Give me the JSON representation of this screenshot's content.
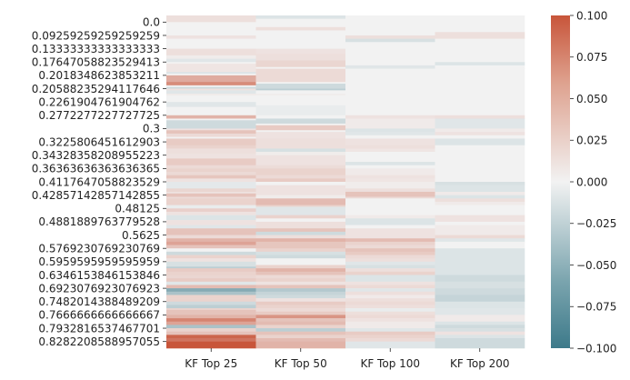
{
  "chart_data": {
    "type": "heatmap",
    "columns": [
      "KF Top 25",
      "KF Top 50",
      "KF Top 100",
      "KF Top 200"
    ],
    "y_tick_labels": [
      "0.0",
      "0.09259259259259259",
      "0.13333333333333333",
      "0.17647058823529413",
      "0.2018348623853211",
      "0.20588235294117646",
      "0.2261904761904762",
      "0.2772277227727725",
      "0.3",
      "0.3225806451612903",
      "0.34328358208955223",
      "0.36363636363636365",
      "0.4117647058823529",
      "0.42857142857142855",
      "0.48125",
      "0.4881889763779528",
      "0.5625",
      "0.5769230769230769",
      "0.5959595959595959",
      "0.6346153846153846",
      "0.6923076923076923",
      "0.7482014388489209",
      "0.7666666666666667",
      "0.7932816537467701",
      "0.8282208588957055"
    ],
    "colorbar": {
      "vmin": -0.1,
      "vmax": 0.1,
      "ticks": [
        "0.100",
        "0.075",
        "0.050",
        "0.025",
        "0.000",
        "−0.025",
        "−0.050",
        "−0.075",
        "−0.100"
      ],
      "low_color": "#3d7a8a",
      "mid_color": "#f2f2f2",
      "high_color": "#c8553a"
    },
    "cell_segments": [
      [
        [
          0.02,
          0.012
        ],
        [
          0.06,
          0
        ],
        [
          0.07,
          0.01
        ],
        [
          0.1,
          0
        ],
        [
          0.12,
          0.012
        ],
        [
          0.13,
          0.004
        ],
        [
          0.14,
          -0.01
        ],
        [
          0.145,
          0
        ],
        [
          0.17,
          0.008
        ],
        [
          0.175,
          -0.012
        ],
        [
          0.18,
          0
        ],
        [
          0.2,
          0.045
        ],
        [
          0.21,
          0.065
        ],
        [
          0.215,
          0
        ],
        [
          0.22,
          -0.02
        ],
        [
          0.225,
          0.01
        ],
        [
          0.235,
          -0.01
        ],
        [
          0.24,
          0.005
        ],
        [
          0.26,
          0
        ],
        [
          0.275,
          -0.01
        ],
        [
          0.3,
          0
        ],
        [
          0.31,
          0.04
        ],
        [
          0.315,
          0
        ],
        [
          0.34,
          -0.02
        ],
        [
          0.345,
          0.01
        ],
        [
          0.355,
          0.03
        ],
        [
          0.365,
          0.015
        ],
        [
          0.37,
          0
        ],
        [
          0.39,
          0.025
        ],
        [
          0.4,
          0.02
        ],
        [
          0.415,
          0.012
        ],
        [
          0.43,
          0.01
        ],
        [
          0.45,
          0.025
        ],
        [
          0.46,
          0.015
        ],
        [
          0.47,
          0.02
        ],
        [
          0.48,
          0.015
        ],
        [
          0.49,
          0.028
        ],
        [
          0.5,
          0.01
        ],
        [
          0.52,
          -0.008
        ],
        [
          0.53,
          0.018
        ],
        [
          0.535,
          0.01
        ],
        [
          0.545,
          0.03
        ],
        [
          0.55,
          0.015
        ],
        [
          0.57,
          0.02
        ],
        [
          0.58,
          -0.005
        ],
        [
          0.59,
          0.022
        ],
        [
          0.6,
          0.01
        ],
        [
          0.615,
          -0.012
        ],
        [
          0.63,
          0.01
        ],
        [
          0.64,
          -0.01
        ],
        [
          0.66,
          0.03
        ],
        [
          0.67,
          0.015
        ],
        [
          0.68,
          0.04
        ],
        [
          0.69,
          0.05
        ],
        [
          0.7,
          0.03
        ],
        [
          0.71,
          0
        ],
        [
          0.72,
          -0.02
        ],
        [
          0.73,
          0.02
        ],
        [
          0.74,
          0.01
        ],
        [
          0.755,
          -0.015
        ],
        [
          0.76,
          -0.03
        ],
        [
          0.77,
          0.025
        ],
        [
          0.78,
          0.02
        ],
        [
          0.79,
          0.018
        ],
        [
          0.8,
          0.025
        ],
        [
          0.81,
          -0.01
        ],
        [
          0.82,
          0.035
        ],
        [
          0.83,
          -0.06
        ],
        [
          0.84,
          -0.04
        ],
        [
          0.85,
          0.02
        ],
        [
          0.86,
          0.02
        ],
        [
          0.87,
          -0.02
        ],
        [
          0.88,
          -0.03
        ],
        [
          0.885,
          0.02
        ],
        [
          0.9,
          0.03
        ],
        [
          0.91,
          0.04
        ],
        [
          0.92,
          0.07
        ],
        [
          0.93,
          0.05
        ],
        [
          0.94,
          -0.04
        ],
        [
          0.95,
          0.02
        ],
        [
          0.96,
          0.03
        ],
        [
          0.97,
          0.09
        ],
        [
          0.98,
          0.08
        ],
        [
          1.0,
          0.1
        ]
      ],
      [
        [
          0.01,
          -0.012
        ],
        [
          0.035,
          0
        ],
        [
          0.045,
          0.012
        ],
        [
          0.06,
          0
        ],
        [
          0.1,
          0
        ],
        [
          0.115,
          0.01
        ],
        [
          0.135,
          0.012
        ],
        [
          0.155,
          0.018
        ],
        [
          0.16,
          0
        ],
        [
          0.17,
          0.015
        ],
        [
          0.2,
          0.015
        ],
        [
          0.205,
          0
        ],
        [
          0.22,
          -0.02
        ],
        [
          0.225,
          -0.03
        ],
        [
          0.235,
          0
        ],
        [
          0.24,
          0.004
        ],
        [
          0.27,
          0
        ],
        [
          0.3,
          -0.005
        ],
        [
          0.31,
          0
        ],
        [
          0.325,
          -0.02
        ],
        [
          0.33,
          0
        ],
        [
          0.345,
          0.025
        ],
        [
          0.35,
          0
        ],
        [
          0.37,
          0.01
        ],
        [
          0.4,
          0.012
        ],
        [
          0.41,
          -0.015
        ],
        [
          0.42,
          0.004
        ],
        [
          0.45,
          0.01
        ],
        [
          0.46,
          0.014
        ],
        [
          0.48,
          0.02
        ],
        [
          0.49,
          0.015
        ],
        [
          0.5,
          0.025
        ],
        [
          0.51,
          0
        ],
        [
          0.52,
          0.01
        ],
        [
          0.54,
          0.01
        ],
        [
          0.55,
          0.004
        ],
        [
          0.57,
          0.035
        ],
        [
          0.575,
          0.02
        ],
        [
          0.6,
          -0.01
        ],
        [
          0.61,
          0.02
        ],
        [
          0.62,
          0
        ],
        [
          0.64,
          0.012
        ],
        [
          0.65,
          0.03
        ],
        [
          0.66,
          -0.02
        ],
        [
          0.67,
          0.012
        ],
        [
          0.68,
          0.04
        ],
        [
          0.7,
          0.028
        ],
        [
          0.71,
          0.02
        ],
        [
          0.72,
          -0.015
        ],
        [
          0.73,
          -0.02
        ],
        [
          0.74,
          0
        ],
        [
          0.75,
          0
        ],
        [
          0.76,
          0.02
        ],
        [
          0.77,
          0.04
        ],
        [
          0.78,
          0.03
        ],
        [
          0.79,
          0.015
        ],
        [
          0.8,
          0.02
        ],
        [
          0.81,
          0.01
        ],
        [
          0.82,
          0.03
        ],
        [
          0.83,
          -0.035
        ],
        [
          0.84,
          -0.025
        ],
        [
          0.85,
          -0.02
        ],
        [
          0.86,
          0.01
        ],
        [
          0.87,
          0.025
        ],
        [
          0.88,
          0.02
        ],
        [
          0.89,
          0.015
        ],
        [
          0.9,
          0.025
        ],
        [
          0.91,
          0.06
        ],
        [
          0.92,
          0.03
        ],
        [
          0.93,
          0.035
        ],
        [
          0.94,
          0.02
        ],
        [
          0.95,
          -0.03
        ],
        [
          0.96,
          0.03
        ],
        [
          0.97,
          0.02
        ],
        [
          0.98,
          0.035
        ],
        [
          1.0,
          0.04
        ]
      ],
      [
        [
          0.06,
          0
        ],
        [
          0.07,
          0.012
        ],
        [
          0.08,
          -0.015
        ],
        [
          0.1,
          0
        ],
        [
          0.15,
          0
        ],
        [
          0.16,
          -0.01
        ],
        [
          0.17,
          0
        ],
        [
          0.3,
          0
        ],
        [
          0.31,
          0.01
        ],
        [
          0.34,
          0.005
        ],
        [
          0.35,
          -0.012
        ],
        [
          0.36,
          -0.01
        ],
        [
          0.37,
          0
        ],
        [
          0.39,
          0.01
        ],
        [
          0.4,
          0.012
        ],
        [
          0.41,
          0.008
        ],
        [
          0.44,
          0
        ],
        [
          0.45,
          -0.012
        ],
        [
          0.46,
          0
        ],
        [
          0.48,
          0.005
        ],
        [
          0.49,
          0.01
        ],
        [
          0.5,
          0.008
        ],
        [
          0.52,
          0.004
        ],
        [
          0.53,
          0.012
        ],
        [
          0.545,
          0.03
        ],
        [
          0.55,
          0.015
        ],
        [
          0.56,
          0
        ],
        [
          0.6,
          0
        ],
        [
          0.61,
          0.005
        ],
        [
          0.63,
          -0.012
        ],
        [
          0.64,
          0
        ],
        [
          0.67,
          0.01
        ],
        [
          0.68,
          0.035
        ],
        [
          0.69,
          0.02
        ],
        [
          0.7,
          0.015
        ],
        [
          0.71,
          0.03
        ],
        [
          0.72,
          0.025
        ],
        [
          0.73,
          0.015
        ],
        [
          0.74,
          0.012
        ],
        [
          0.75,
          -0.01
        ],
        [
          0.76,
          -0.015
        ],
        [
          0.77,
          0.012
        ],
        [
          0.78,
          0.02
        ],
        [
          0.8,
          -0.012
        ],
        [
          0.81,
          0.01
        ],
        [
          0.82,
          0.015
        ],
        [
          0.83,
          -0.01
        ],
        [
          0.84,
          0.012
        ],
        [
          0.85,
          0.005
        ],
        [
          0.86,
          0.012
        ],
        [
          0.87,
          0.015
        ],
        [
          0.88,
          0.012
        ],
        [
          0.89,
          -0.005
        ],
        [
          0.9,
          0.012
        ],
        [
          0.91,
          0.015
        ],
        [
          0.92,
          0.01
        ],
        [
          0.94,
          0.005
        ],
        [
          0.95,
          -0.01
        ],
        [
          0.96,
          0.025
        ],
        [
          0.97,
          0.02
        ],
        [
          0.98,
          0.015
        ],
        [
          1.0,
          -0.01
        ]
      ],
      [
        [
          0.05,
          0
        ],
        [
          0.07,
          0.012
        ],
        [
          0.08,
          0
        ],
        [
          0.1,
          0
        ],
        [
          0.14,
          0
        ],
        [
          0.15,
          -0.012
        ],
        [
          0.16,
          0
        ],
        [
          0.3,
          0
        ],
        [
          0.31,
          0.012
        ],
        [
          0.34,
          -0.01
        ],
        [
          0.35,
          0.005
        ],
        [
          0.36,
          0.01
        ],
        [
          0.37,
          0
        ],
        [
          0.39,
          -0.012
        ],
        [
          0.4,
          0
        ],
        [
          0.5,
          0
        ],
        [
          0.51,
          -0.015
        ],
        [
          0.53,
          -0.012
        ],
        [
          0.54,
          0.005
        ],
        [
          0.55,
          -0.012
        ],
        [
          0.56,
          0.012
        ],
        [
          0.57,
          0.005
        ],
        [
          0.6,
          0
        ],
        [
          0.62,
          0.01
        ],
        [
          0.63,
          0
        ],
        [
          0.66,
          0.005
        ],
        [
          0.67,
          0.015
        ],
        [
          0.68,
          -0.01
        ],
        [
          0.7,
          0
        ],
        [
          0.78,
          -0.012
        ],
        [
          0.8,
          -0.02
        ],
        [
          0.82,
          -0.015
        ],
        [
          0.84,
          -0.02
        ],
        [
          0.86,
          -0.025
        ],
        [
          0.88,
          -0.012
        ],
        [
          0.9,
          -0.01
        ],
        [
          0.92,
          0.005
        ],
        [
          0.93,
          -0.012
        ],
        [
          0.94,
          -0.02
        ],
        [
          0.95,
          -0.015
        ],
        [
          0.96,
          0.01
        ],
        [
          0.97,
          -0.012
        ],
        [
          1.0,
          -0.02
        ]
      ]
    ]
  }
}
